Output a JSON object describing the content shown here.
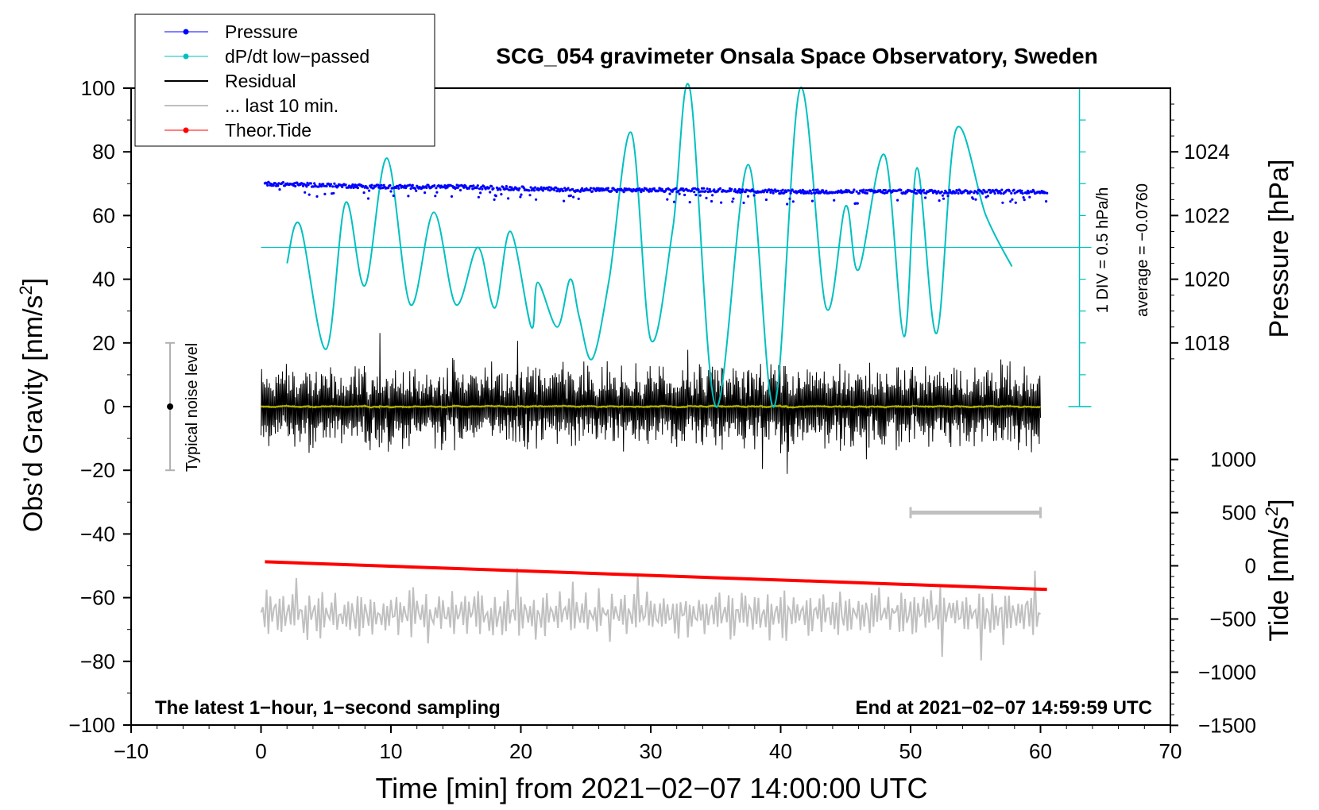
{
  "chart_data": {
    "type": "line",
    "title": "SCG_054 gravimeter Onsala Space Observatory, Sweden",
    "xlabel": "Time [min] from 2021−02−07 14:00:00 UTC",
    "ylabel": "Obs’d Gravity [nm/s",
    "ylabel_sup": "2",
    "ylabel_end": "]",
    "y2label_pressure": "Pressure [hPa]",
    "y2label_tide": "Tide [nm/s",
    "y2label_tide_sup": "2",
    "y2label_tide_end": "]",
    "xlim": [
      -10,
      70
    ],
    "ylim": [
      -100,
      100
    ],
    "x_ticks": [
      "−10",
      "0",
      "10",
      "20",
      "30",
      "40",
      "50",
      "60",
      "70"
    ],
    "y_ticks": [
      "100",
      "80",
      "60",
      "40",
      "20",
      "0",
      "−20",
      "−40",
      "−60",
      "−80",
      "−100"
    ],
    "pressure_ticks": [
      "1024",
      "1022",
      "1020",
      "1018"
    ],
    "tide_ticks": [
      "1000",
      "500",
      "0",
      "−500",
      "−1000",
      "−1500"
    ],
    "legend": {
      "position": "top-left",
      "entries": [
        {
          "label": "Pressure",
          "color": "#0000ff",
          "marker": "dot"
        },
        {
          "label": "dP/dt low−passed",
          "color": "#00c0c0",
          "marker": "dot"
        },
        {
          "label": "Residual",
          "color": "#000000",
          "marker": "line"
        },
        {
          "label": "... last 10 min.",
          "color": "#c0c0c0",
          "marker": "line"
        },
        {
          "label": "Theor.Tide",
          "color": "#ff0000",
          "marker": "dot"
        }
      ]
    },
    "annotations": {
      "bottom_left": "The latest 1−hour, 1−second sampling",
      "bottom_right": "End at 2021−02−07 14:59:59 UTC",
      "dpdt_scale": "1 DIV = 0.5 hPa/h",
      "dpdt_average": "average = −0.0760",
      "noise_label": "Typical noise level"
    },
    "noise_bar": {
      "x": -7,
      "center": 0,
      "low": -20,
      "high": 20
    },
    "last10_marker": {
      "x_start": 50,
      "x_end": 60,
      "tide": 500
    },
    "dpdt_axis": {
      "x": 63,
      "y_low": 0,
      "y_high": 100,
      "zero_line_y": 50
    },
    "pressure_axis_map": {
      "p1": 1018,
      "y1": 20,
      "p2": 1024,
      "y2": 80
    },
    "tide_axis_map": {
      "t1": 0,
      "y1": -50,
      "t2": 500,
      "y2": -33.3
    },
    "series": [
      {
        "name": "Pressure",
        "color": "#0000ff",
        "x": [
          0.3,
          5,
          10,
          15,
          20,
          25,
          30,
          35,
          40,
          45,
          50,
          55,
          60.5
        ],
        "values": [
          1023.0,
          1022.95,
          1022.9,
          1022.9,
          1022.85,
          1022.8,
          1022.8,
          1022.8,
          1022.75,
          1022.75,
          1022.75,
          1022.75,
          1022.75
        ]
      },
      {
        "name": "dP/dt low-passed",
        "color": "#00c0c0",
        "x": [
          2.0,
          3.0,
          5.0,
          6.5,
          8.0,
          9.7,
          11.5,
          13.3,
          15.0,
          16.7,
          18.0,
          19.2,
          20.8,
          21.3,
          22.8,
          23.8,
          24.5,
          25.5,
          26.8,
          28.5,
          30.0,
          31.7,
          33.0,
          35.0,
          37.5,
          39.5,
          41.5,
          43.5,
          45.0,
          46.0,
          48.0,
          49.5,
          50.5,
          52.0,
          53.5,
          55.8,
          57.8
        ],
        "values": [
          45,
          57,
          18,
          64,
          38,
          78,
          32,
          61,
          32,
          50,
          31,
          55,
          25,
          39,
          25,
          40,
          28,
          15,
          40,
          86,
          21,
          56,
          100,
          0,
          76,
          0,
          100,
          31,
          63,
          43,
          79,
          22,
          75,
          23,
          87,
          60,
          44
        ]
      },
      {
        "name": "Residual",
        "color": "#000000",
        "x": [
          0,
          60
        ],
        "values": [
          0,
          0
        ],
        "note": "high-frequency noise, envelope approx. ±15 nm/s2 (extremes −24 to +22)"
      },
      {
        "name": "Residual smoothed",
        "color": "#b0b000",
        "x": [
          0,
          60
        ],
        "values": [
          0,
          0
        ]
      },
      {
        "name": "... last 10 min.",
        "color": "#c0c0c0",
        "x": [
          0,
          60
        ],
        "values": [
          -65,
          -65
        ],
        "note": "replayed residual, range approx. −81 to −43"
      },
      {
        "name": "Theor.Tide",
        "color": "#ff0000",
        "x": [
          0.3,
          60.5
        ],
        "values": [
          38,
          -222
        ]
      }
    ]
  }
}
